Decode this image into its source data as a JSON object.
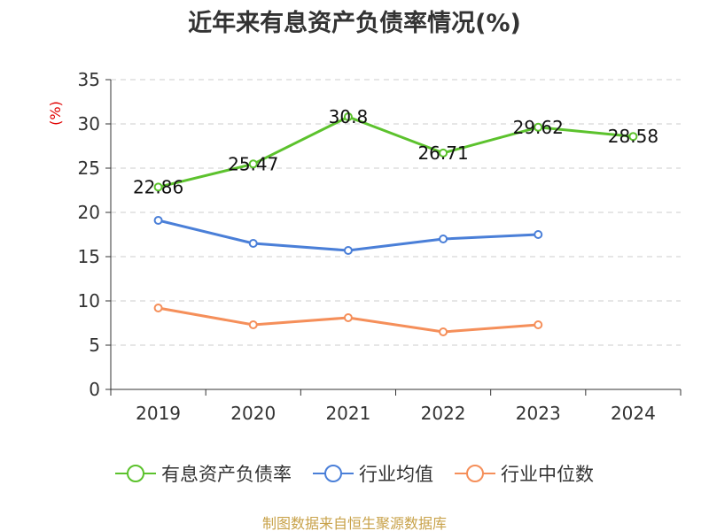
{
  "title": "近年来有息资产负债率情况(%)",
  "source": "制图数据来自恒生聚源数据库",
  "chart_data": {
    "type": "line",
    "title": "近年来有息资产负债率情况(%)",
    "ylabel": "(%)",
    "xlabel": "",
    "categories": [
      "2019",
      "2020",
      "2021",
      "2022",
      "2023",
      "2024"
    ],
    "ylim": [
      0,
      35
    ],
    "yticks": [
      0,
      5,
      10,
      15,
      20,
      25,
      30,
      35
    ],
    "grid": true,
    "legend_position": "bottom",
    "series": [
      {
        "name": "有息资产负债率",
        "color": "#5cc22d",
        "values": [
          22.86,
          25.47,
          30.8,
          26.71,
          29.62,
          28.58
        ],
        "labels": [
          "22.86",
          "25.47",
          "30.8",
          "26.71",
          "29.62",
          "28.58"
        ]
      },
      {
        "name": "行业均值",
        "color": "#4a7fd8",
        "values": [
          19.1,
          16.5,
          15.7,
          17.0,
          17.5,
          null
        ]
      },
      {
        "name": "行业中位数",
        "color": "#f58f5a",
        "values": [
          9.2,
          7.3,
          8.1,
          6.5,
          7.3,
          null
        ]
      }
    ]
  }
}
